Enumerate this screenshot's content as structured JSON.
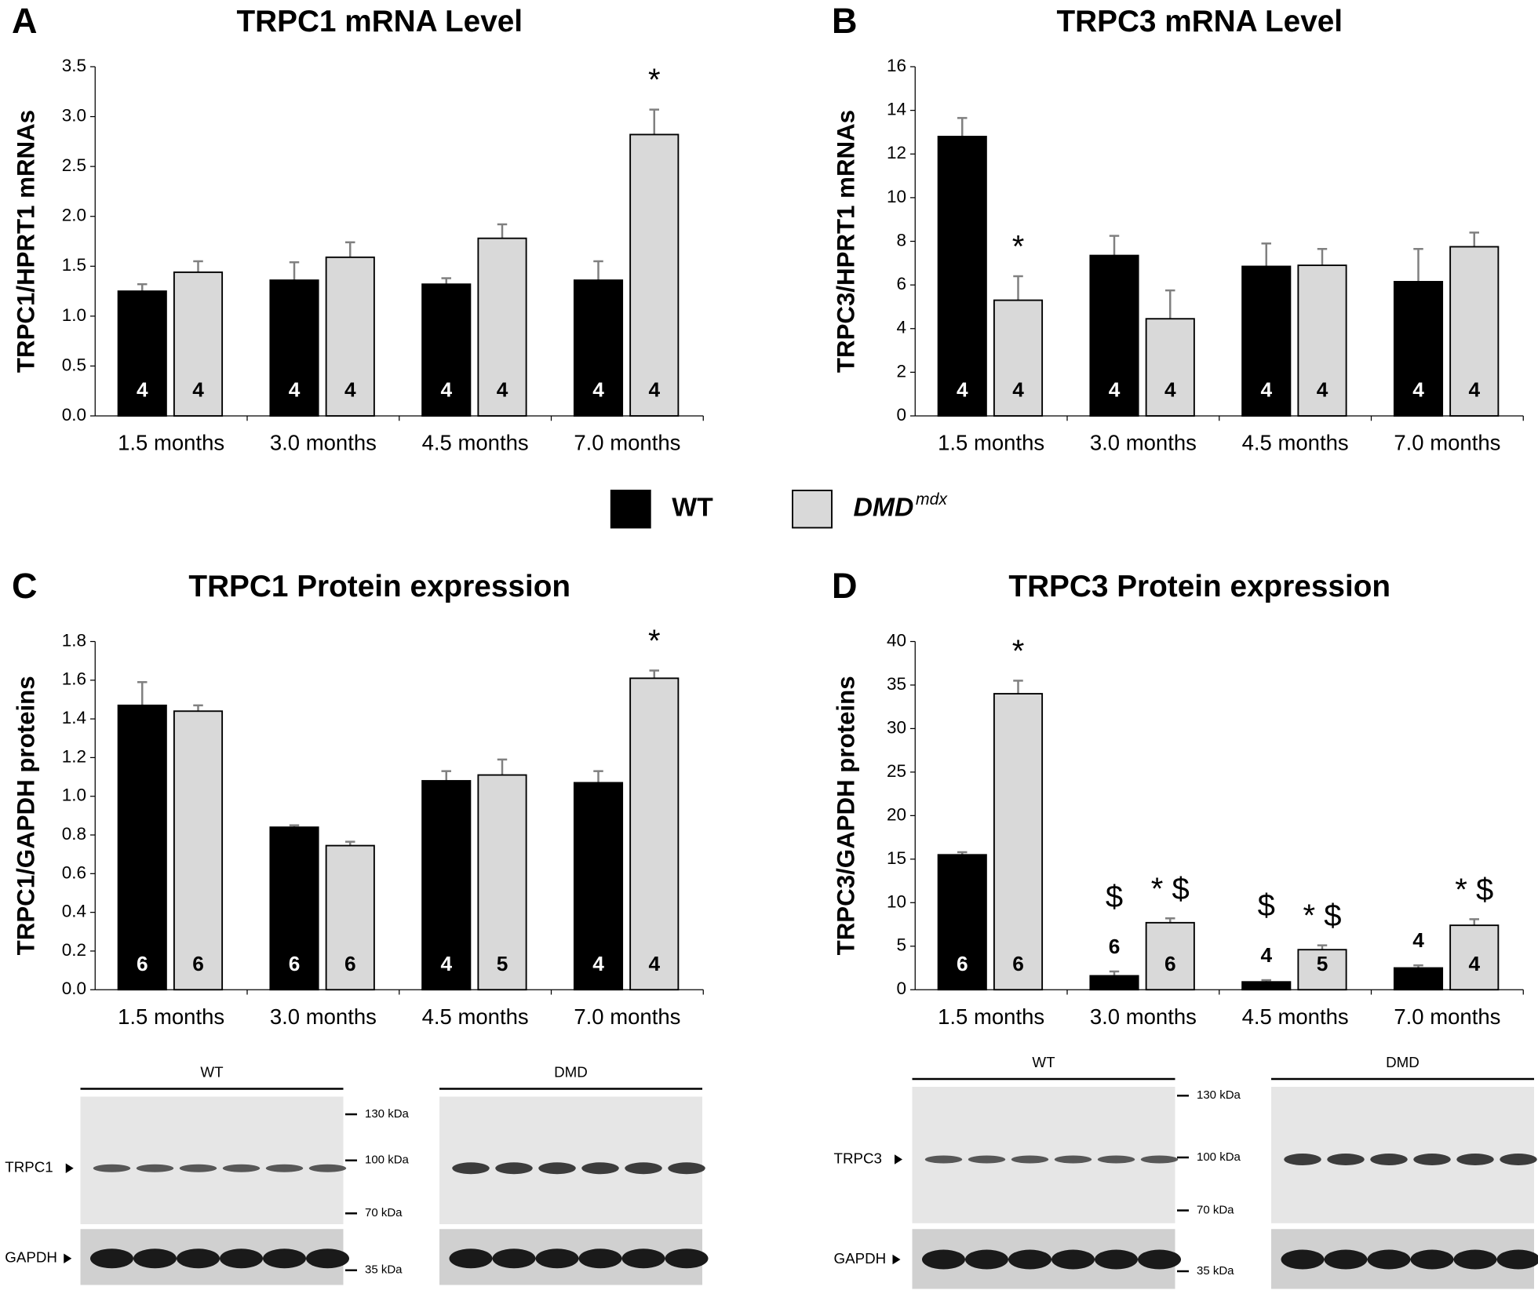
{
  "legend": [
    {
      "label": "WT",
      "color": "#000000"
    },
    {
      "label": "DMD",
      "superscript": "mdx",
      "color": "#d9d9d9"
    }
  ],
  "chart_data": [
    {
      "type": "bar",
      "panel": "A",
      "title": "TRPC1 mRNA Level",
      "y_label": "TRPC1/HPRT1 mRNAs",
      "categories": [
        "1.5 months",
        "3.0 months",
        "4.5 months",
        "7.0 months"
      ],
      "ylim": [
        0,
        3.5
      ],
      "yticks": [
        {
          "value": 0,
          "label": "0.0"
        },
        0.5,
        {
          "value": 1,
          "label": "1.0"
        },
        1.5,
        {
          "value": 2,
          "label": "2.0"
        },
        2.5,
        {
          "value": 3,
          "label": "3.0"
        },
        3.5
      ],
      "series": [
        {
          "color": "#000000",
          "values": [
            1.25,
            1.36,
            1.32,
            1.36
          ],
          "errors": [
            0.07,
            0.18,
            0.06,
            0.19
          ],
          "n": [
            4,
            4,
            4,
            4
          ],
          "annotations": [
            null,
            null,
            null,
            null
          ]
        },
        {
          "color": "#d9d9d9",
          "values": [
            1.44,
            1.59,
            1.78,
            2.82
          ],
          "errors": [
            0.11,
            0.15,
            0.14,
            0.25
          ],
          "n": [
            4,
            4,
            4,
            4
          ],
          "annotations": [
            null,
            null,
            null,
            "*"
          ]
        }
      ]
    },
    {
      "type": "bar",
      "panel": "B",
      "title": "TRPC3 mRNA Level",
      "y_label": "TRPC3/HPRT1 mRNAs",
      "categories": [
        "1.5 months",
        "3.0 months",
        "4.5 months",
        "7.0 months"
      ],
      "ylim": [
        0,
        16
      ],
      "yticks": [
        0,
        2,
        4,
        6,
        8,
        10,
        12,
        14,
        16
      ],
      "series": [
        {
          "color": "#000000",
          "values": [
            12.8,
            7.35,
            6.85,
            6.15
          ],
          "errors": [
            0.85,
            0.9,
            1.05,
            1.5
          ],
          "n": [
            4,
            4,
            4,
            4
          ],
          "annotations": [
            null,
            null,
            null,
            null
          ]
        },
        {
          "color": "#d9d9d9",
          "values": [
            5.3,
            4.45,
            6.9,
            7.75
          ],
          "errors": [
            1.1,
            1.3,
            0.75,
            0.65
          ],
          "n": [
            4,
            4,
            4,
            4
          ],
          "annotations": [
            "*",
            null,
            null,
            null
          ]
        }
      ]
    },
    {
      "type": "bar",
      "panel": "C",
      "title": "TRPC1 Protein expression",
      "y_label": "TRPC1/GAPDH proteins",
      "categories": [
        "1.5 months",
        "3.0 months",
        "4.5 months",
        "7.0 months"
      ],
      "ylim": [
        0,
        1.8
      ],
      "yticks": [
        {
          "value": 0,
          "label": "0.0"
        },
        0.2,
        0.4,
        0.6,
        0.8,
        {
          "value": 1,
          "label": "1.0"
        },
        1.2,
        1.4,
        1.6,
        1.8
      ],
      "series": [
        {
          "color": "#000000",
          "values": [
            1.47,
            0.84,
            1.08,
            1.07
          ],
          "errors": [
            0.12,
            0.01,
            0.05,
            0.06
          ],
          "n": [
            6,
            6,
            4,
            4
          ],
          "annotations": [
            null,
            null,
            null,
            null
          ]
        },
        {
          "color": "#d9d9d9",
          "values": [
            1.44,
            0.745,
            1.11,
            1.61
          ],
          "errors": [
            0.03,
            0.02,
            0.08,
            0.04
          ],
          "n": [
            6,
            6,
            5,
            4
          ],
          "annotations": [
            null,
            null,
            null,
            "*"
          ]
        }
      ],
      "blot": {
        "groups": [
          "WT",
          "DMD"
        ],
        "markers": [
          "130 kDa",
          "100 kDa",
          "70 kDa",
          "35 kDa"
        ],
        "proteins": [
          "TRPC1",
          "GAPDH"
        ]
      }
    },
    {
      "type": "bar",
      "panel": "D",
      "title": "TRPC3 Protein expression",
      "y_label": "TRPC3/GAPDH proteins",
      "categories": [
        "1.5 months",
        "3.0 months",
        "4.5 months",
        "7.0 months"
      ],
      "ylim": [
        0,
        40
      ],
      "yticks": [
        0,
        5,
        10,
        15,
        20,
        25,
        30,
        35,
        40
      ],
      "series": [
        {
          "color": "#000000",
          "values": [
            15.5,
            1.6,
            0.9,
            2.5
          ],
          "errors": [
            0.3,
            0.5,
            0.2,
            0.3
          ],
          "n": [
            6,
            6,
            4,
            4
          ],
          "annotations": [
            null,
            "$",
            "$",
            null
          ]
        },
        {
          "color": "#d9d9d9",
          "values": [
            34,
            7.7,
            4.6,
            7.4
          ],
          "errors": [
            1.5,
            0.5,
            0.5,
            0.7
          ],
          "n": [
            6,
            6,
            5,
            4
          ],
          "annotations": [
            "*",
            "* $",
            "* $",
            "* $"
          ]
        }
      ],
      "blot": {
        "groups": [
          "WT",
          "DMD"
        ],
        "markers": [
          "130 kDa",
          "100 kDa",
          "70 kDa",
          "35 kDa"
        ],
        "proteins": [
          "TRPC3",
          "GAPDH"
        ]
      }
    }
  ]
}
